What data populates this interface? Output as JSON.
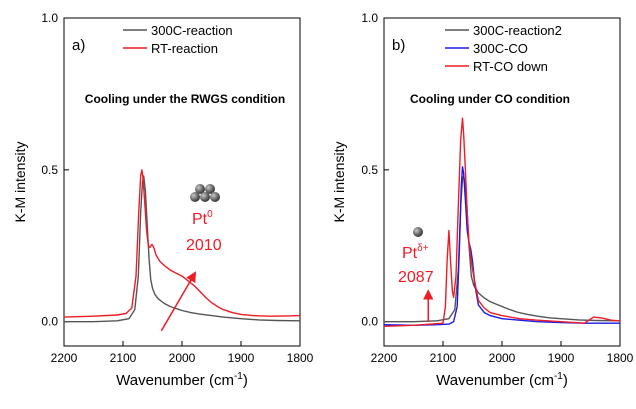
{
  "colors": {
    "axis": "#000000",
    "gray": "#555555",
    "red": "#ee1c25",
    "blue": "#1a1ae6"
  },
  "chart_data": [
    {
      "type": "line",
      "panel_label": "a)",
      "title": "Cooling under the RWGS condition",
      "xlabel_text": "Wavenumber (cm",
      "xlabel_sup": "-1",
      "xlabel_close": ")",
      "ylabel": "K-M intensity",
      "xlim": [
        2200,
        1800
      ],
      "ylim": [
        -0.08,
        1.0
      ],
      "xticks": [
        2200,
        2100,
        2000,
        1900,
        1800
      ],
      "yticks": [
        0.0,
        0.5,
        1.0
      ],
      "ytick_labels": [
        "0.0",
        "0.5",
        "1.0"
      ],
      "legend_position": "top-right",
      "series": [
        {
          "name": "300C-reaction",
          "color": "gray",
          "points": [
            [
              2200,
              0.0
            ],
            [
              2150,
              0.0
            ],
            [
              2110,
              0.003
            ],
            [
              2090,
              0.01
            ],
            [
              2080,
              0.04
            ],
            [
              2074,
              0.15
            ],
            [
              2070,
              0.36
            ],
            [
              2067,
              0.46
            ],
            [
              2065,
              0.48
            ],
            [
              2062,
              0.43
            ],
            [
              2059,
              0.32
            ],
            [
              2056,
              0.21
            ],
            [
              2053,
              0.14
            ],
            [
              2050,
              0.11
            ],
            [
              2046,
              0.09
            ],
            [
              2040,
              0.075
            ],
            [
              2030,
              0.06
            ],
            [
              2020,
              0.05
            ],
            [
              2010,
              0.043
            ],
            [
              2000,
              0.037
            ],
            [
              1985,
              0.03
            ],
            [
              1970,
              0.025
            ],
            [
              1950,
              0.02
            ],
            [
              1930,
              0.015
            ],
            [
              1900,
              0.01
            ],
            [
              1870,
              0.006
            ],
            [
              1840,
              0.004
            ],
            [
              1800,
              0.003
            ]
          ]
        },
        {
          "name": "RT-reaction",
          "color": "red",
          "points": [
            [
              2200,
              0.015
            ],
            [
              2150,
              0.018
            ],
            [
              2110,
              0.022
            ],
            [
              2095,
              0.027
            ],
            [
              2085,
              0.045
            ],
            [
              2078,
              0.15
            ],
            [
              2073,
              0.37
            ],
            [
              2070,
              0.48
            ],
            [
              2068,
              0.5
            ],
            [
              2066,
              0.47
            ],
            [
              2063,
              0.39
            ],
            [
              2060,
              0.3
            ],
            [
              2057,
              0.25
            ],
            [
              2054,
              0.245
            ],
            [
              2051,
              0.255
            ],
            [
              2048,
              0.245
            ],
            [
              2044,
              0.22
            ],
            [
              2038,
              0.2
            ],
            [
              2030,
              0.185
            ],
            [
              2020,
              0.17
            ],
            [
              2010,
              0.16
            ],
            [
              2000,
              0.15
            ],
            [
              1990,
              0.135
            ],
            [
              1980,
              0.12
            ],
            [
              1970,
              0.1
            ],
            [
              1960,
              0.08
            ],
            [
              1950,
              0.063
            ],
            [
              1940,
              0.05
            ],
            [
              1930,
              0.04
            ],
            [
              1915,
              0.03
            ],
            [
              1900,
              0.024
            ],
            [
              1880,
              0.02
            ],
            [
              1850,
              0.018
            ],
            [
              1820,
              0.019
            ],
            [
              1800,
              0.02
            ]
          ]
        }
      ],
      "annotations": {
        "species_base": "Pt",
        "species_sup": "0",
        "wavenumber_label": "2010",
        "arrow": {
          "from": [
            2035,
            -0.03
          ],
          "to": [
            1978,
            0.16
          ]
        },
        "cluster_icon": "pt-cluster-icon"
      }
    },
    {
      "type": "line",
      "panel_label": "b)",
      "title": "Cooling under CO condition",
      "xlabel_text": "Wavenumber (cm",
      "xlabel_sup": "-1",
      "xlabel_close": ")",
      "ylabel": "K-M intensity",
      "xlim": [
        2200,
        1800
      ],
      "ylim": [
        -0.08,
        1.0
      ],
      "xticks": [
        2200,
        2100,
        2000,
        1900,
        1800
      ],
      "yticks": [
        0.0,
        0.5,
        1.0
      ],
      "ytick_labels": [
        "0.0",
        "0.5",
        "1.0"
      ],
      "legend_position": "top-right",
      "series": [
        {
          "name": "300C-reaction2",
          "color": "gray",
          "points": [
            [
              2200,
              0.0
            ],
            [
              2150,
              0.0
            ],
            [
              2110,
              0.003
            ],
            [
              2090,
              0.01
            ],
            [
              2080,
              0.04
            ],
            [
              2074,
              0.17
            ],
            [
              2070,
              0.38
            ],
            [
              2067,
              0.47
            ],
            [
              2065,
              0.48
            ],
            [
              2062,
              0.45
            ],
            [
              2059,
              0.36
            ],
            [
              2056,
              0.25
            ],
            [
              2052,
              0.15
            ],
            [
              2048,
              0.12
            ],
            [
              2040,
              0.095
            ],
            [
              2030,
              0.078
            ],
            [
              2020,
              0.066
            ],
            [
              2010,
              0.058
            ],
            [
              2000,
              0.05
            ],
            [
              1990,
              0.042
            ],
            [
              1975,
              0.032
            ],
            [
              1960,
              0.025
            ],
            [
              1940,
              0.018
            ],
            [
              1920,
              0.013
            ],
            [
              1900,
              0.01
            ],
            [
              1870,
              0.006
            ],
            [
              1840,
              0.004
            ],
            [
              1800,
              0.003
            ]
          ]
        },
        {
          "name": "300C-CO",
          "color": "blue",
          "points": [
            [
              2200,
              -0.01
            ],
            [
              2150,
              -0.012
            ],
            [
              2110,
              -0.01
            ],
            [
              2090,
              -0.008
            ],
            [
              2082,
              0.0
            ],
            [
              2076,
              0.05
            ],
            [
              2072,
              0.25
            ],
            [
              2069,
              0.45
            ],
            [
              2067,
              0.51
            ],
            [
              2065,
              0.49
            ],
            [
              2062,
              0.4
            ],
            [
              2059,
              0.3
            ],
            [
              2056,
              0.26
            ],
            [
              2053,
              0.24
            ],
            [
              2050,
              0.2
            ],
            [
              2046,
              0.12
            ],
            [
              2040,
              0.055
            ],
            [
              2030,
              0.03
            ],
            [
              2020,
              0.02
            ],
            [
              2000,
              0.01
            ],
            [
              1970,
              0.005
            ],
            [
              1940,
              0.0
            ],
            [
              1900,
              -0.003
            ],
            [
              1860,
              -0.005
            ],
            [
              1800,
              -0.005
            ]
          ]
        },
        {
          "name": "RT-CO down",
          "color": "red",
          "points": [
            [
              2200,
              -0.015
            ],
            [
              2150,
              -0.012
            ],
            [
              2120,
              -0.008
            ],
            [
              2100,
              -0.005
            ],
            [
              2096,
              0.05
            ],
            [
              2093,
              0.2
            ],
            [
              2090,
              0.3
            ],
            [
              2087,
              0.19
            ],
            [
              2084,
              0.1
            ],
            [
              2082,
              0.08
            ],
            [
              2078,
              0.15
            ],
            [
              2074,
              0.38
            ],
            [
              2070,
              0.6
            ],
            [
              2067,
              0.67
            ],
            [
              2065,
              0.62
            ],
            [
              2062,
              0.5
            ],
            [
              2059,
              0.36
            ],
            [
              2056,
              0.26
            ],
            [
              2052,
              0.2
            ],
            [
              2048,
              0.15
            ],
            [
              2044,
              0.11
            ],
            [
              2040,
              0.07
            ],
            [
              2030,
              0.045
            ],
            [
              2020,
              0.03
            ],
            [
              2000,
              0.02
            ],
            [
              1970,
              0.01
            ],
            [
              1940,
              0.005
            ],
            [
              1900,
              0.0
            ],
            [
              1860,
              -0.005
            ],
            [
              1845,
              0.015
            ],
            [
              1830,
              0.012
            ],
            [
              1815,
              0.005
            ],
            [
              1800,
              0.003
            ]
          ]
        }
      ],
      "annotations": {
        "species_base": "Pt",
        "species_sup": "δ+",
        "wavenumber_label": "2087",
        "arrow": {
          "from": [
            2125,
            0.0
          ],
          "to": [
            2125,
            0.1
          ]
        },
        "cluster_icon": "pt-atom-icon"
      }
    }
  ]
}
